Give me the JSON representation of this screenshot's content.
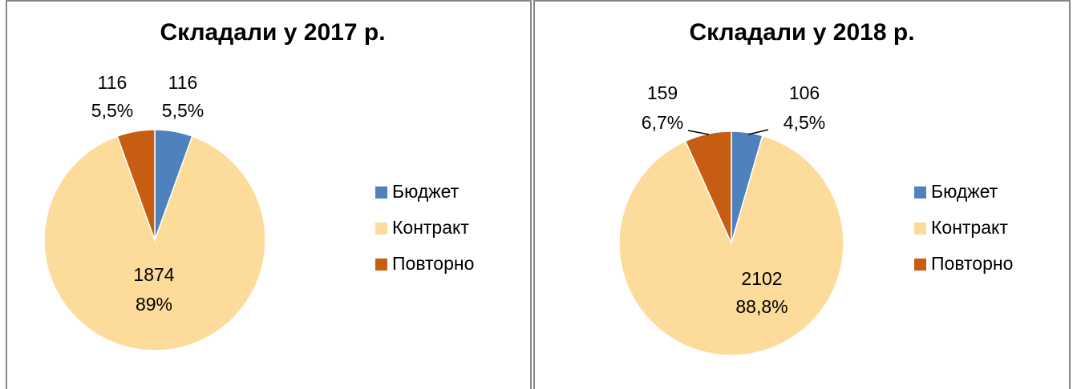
{
  "chart_data": [
    {
      "type": "pie",
      "title": "Складали у 2017 р.",
      "categories": [
        "Бюджет",
        "Контракт",
        "Повторно"
      ],
      "values": [
        116,
        1874,
        116
      ],
      "percent_labels": [
        "5,5%",
        "89%",
        "5,5%"
      ],
      "colors": [
        "#4f81bd",
        "#fddc9b",
        "#c65d10"
      ],
      "legend": "right"
    },
    {
      "type": "pie",
      "title": "Складали у 2018 р.",
      "categories": [
        "Бюджет",
        "Контракт",
        "Повторно"
      ],
      "values": [
        106,
        2102,
        159
      ],
      "percent_labels": [
        "4,5%",
        "88,8%",
        "6,7%"
      ],
      "colors": [
        "#4f81bd",
        "#fddc9b",
        "#c65d10"
      ],
      "legend": "right"
    }
  ]
}
